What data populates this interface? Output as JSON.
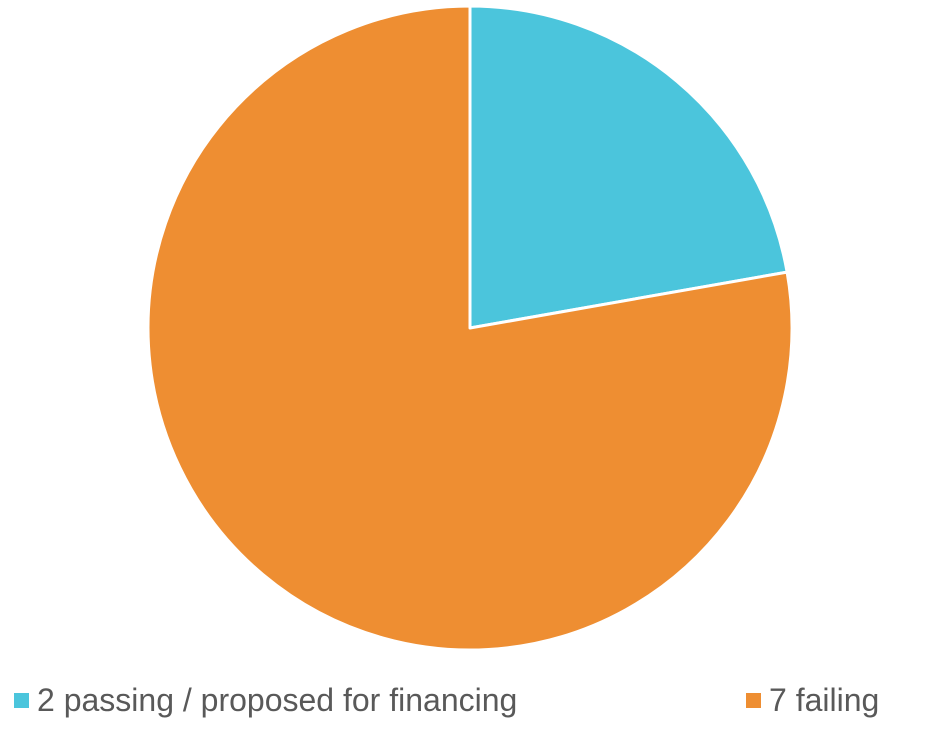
{
  "chart_data": {
    "type": "pie",
    "categories": [
      "2 passing / proposed for financing",
      "7 failing"
    ],
    "values": [
      2,
      7
    ],
    "colors": [
      "#4bc5dc",
      "#ee8e32"
    ],
    "title": "",
    "legend_position": "bottom",
    "start_angle": "12 o'clock, clockwise"
  }
}
